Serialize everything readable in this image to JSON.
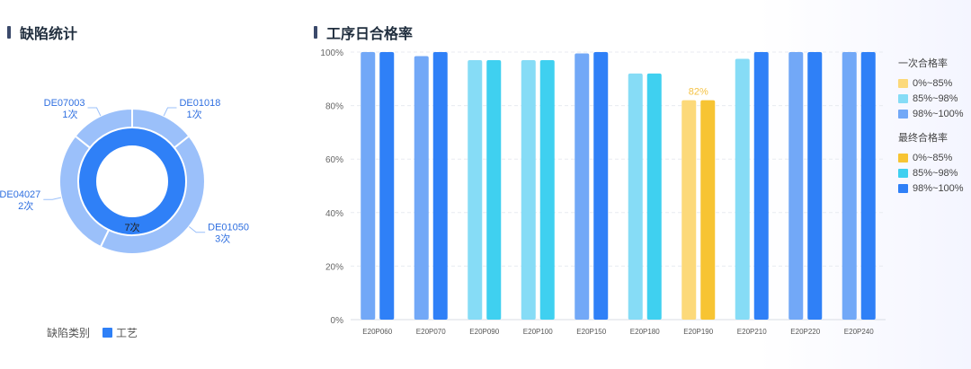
{
  "left_panel": {
    "title": "缺陷统计",
    "legend_title": "缺陷类别",
    "legend_item": "工艺",
    "legend_color": "#2f80f7"
  },
  "right_panel": {
    "title": "工序日合格率"
  },
  "legend_groups": [
    {
      "title": "一次合格率",
      "items": [
        {
          "label": "0%~85%",
          "color": "#fcd97a"
        },
        {
          "label": "85%~98%",
          "color": "#86dcf6"
        },
        {
          "label": "98%~100%",
          "color": "#72a8f7"
        }
      ]
    },
    {
      "title": "最终合格率",
      "items": [
        {
          "label": "0%~85%",
          "color": "#f7c433"
        },
        {
          "label": "85%~98%",
          "color": "#3fd0f0"
        },
        {
          "label": "98%~100%",
          "color": "#2f80f7"
        }
      ]
    }
  ],
  "chart_data": [
    {
      "type": "pie",
      "center_label": "7次",
      "inner_ring": {
        "categories": [
          "工艺"
        ],
        "values": [
          7
        ],
        "color": "#2f80f7"
      },
      "slices": [
        {
          "code": "DE01018",
          "count_label": "1次",
          "value": 1
        },
        {
          "code": "DE01050",
          "count_label": "3次",
          "value": 3
        },
        {
          "code": "DE04027",
          "count_label": "2次",
          "value": 2
        },
        {
          "code": "DE07003",
          "count_label": "1次",
          "value": 1
        }
      ],
      "outer_color": "#9bc0fa"
    },
    {
      "type": "bar",
      "categories": [
        "E20P060",
        "E20P070",
        "E20P090",
        "E20P100",
        "E20P150",
        "E20P180",
        "E20P190",
        "E20P210",
        "E20P220",
        "E20P240"
      ],
      "series": [
        {
          "name": "一次合格率",
          "values": [
            100,
            98.5,
            97,
            97,
            99.5,
            92,
            82,
            97.5,
            100,
            100
          ]
        },
        {
          "name": "最终合格率",
          "values": [
            100,
            100,
            97,
            97,
            100,
            92,
            82,
            100,
            100,
            100
          ]
        }
      ],
      "yticks": [
        "0%",
        "20%",
        "40%",
        "60%",
        "80%",
        "100%"
      ],
      "ylim": [
        0,
        100
      ],
      "data_labels": [
        {
          "category": "E20P190",
          "text": "82%"
        }
      ],
      "grid": true,
      "legend_position": "right"
    }
  ]
}
